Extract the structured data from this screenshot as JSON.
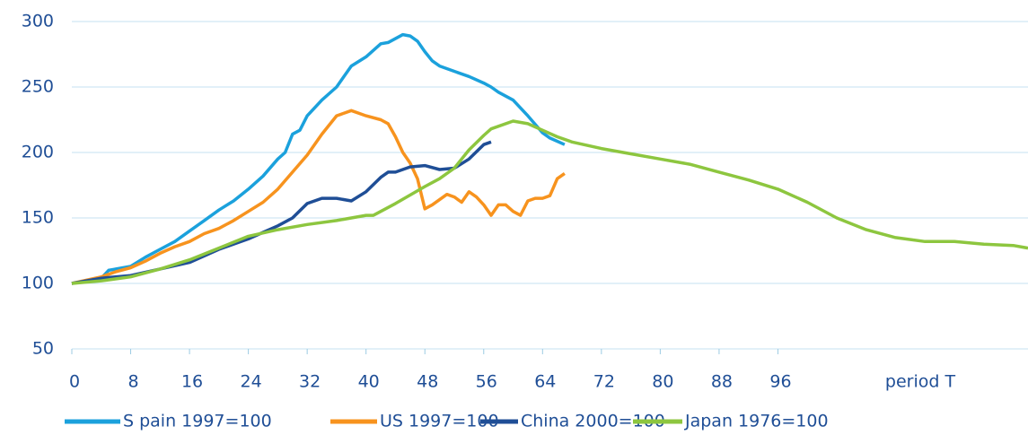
{
  "chart_data": {
    "type": "line",
    "xlabel": "period T",
    "xlim": [
      0,
      130
    ],
    "xticks": [
      0,
      8,
      16,
      24,
      32,
      40,
      48,
      56,
      64,
      72,
      80,
      88,
      96
    ],
    "ylim": [
      50,
      300
    ],
    "yticks": [
      50,
      100,
      150,
      200,
      250,
      300
    ],
    "grid": true,
    "legend": "bottom",
    "series": [
      {
        "name": "S pain 1997=100",
        "color": "#1ba1dc",
        "x": [
          0,
          4,
          5,
          8,
          10,
          12,
          14,
          16,
          18,
          20,
          22,
          24,
          26,
          28,
          29,
          30,
          31,
          32,
          34,
          36,
          37,
          38,
          40,
          42,
          43,
          45,
          46,
          47,
          48,
          49,
          50,
          52,
          54,
          56,
          57,
          58,
          60,
          62,
          64,
          65,
          67
        ],
        "values": [
          100,
          104,
          110,
          113,
          120,
          126,
          132,
          140,
          148,
          156,
          163,
          172,
          182,
          195,
          200,
          214,
          217,
          228,
          240,
          250,
          258,
          266,
          273,
          283,
          284,
          290,
          289,
          285,
          277,
          270,
          266,
          262,
          258,
          253,
          250,
          246,
          240,
          228,
          215,
          211,
          206
        ]
      },
      {
        "name": "US 1997=100",
        "color": "#f7931e",
        "x": [
          0,
          4,
          6,
          8,
          10,
          12,
          14,
          16,
          18,
          20,
          22,
          24,
          26,
          28,
          30,
          32,
          34,
          36,
          38,
          40,
          42,
          43,
          44,
          45,
          46,
          47,
          48,
          49,
          50,
          51,
          52,
          53,
          54,
          55,
          56,
          57,
          58,
          59,
          60,
          61,
          62,
          63,
          64,
          65,
          66,
          67
        ],
        "values": [
          100,
          105,
          109,
          112,
          117,
          123,
          128,
          132,
          138,
          142,
          148,
          155,
          162,
          172,
          185,
          198,
          214,
          228,
          232,
          228,
          225,
          222,
          212,
          200,
          192,
          180,
          157,
          160,
          164,
          168,
          166,
          162,
          170,
          166,
          160,
          152,
          160,
          160,
          155,
          152,
          163,
          165,
          165,
          167,
          180,
          184
        ]
      },
      {
        "name": "China 2000=100",
        "color": "#1f4e96",
        "x": [
          0,
          4,
          8,
          12,
          16,
          20,
          24,
          28,
          30,
          32,
          34,
          36,
          38,
          40,
          42,
          43,
          44,
          46,
          48,
          50,
          52,
          54,
          56,
          57
        ],
        "values": [
          100,
          104,
          106,
          111,
          116,
          126,
          134,
          144,
          150,
          161,
          165,
          165,
          163,
          170,
          181,
          185,
          185,
          189,
          190,
          187,
          188,
          195,
          206,
          208
        ]
      },
      {
        "name": "Japan 1976=100",
        "color": "#8dc63f",
        "x": [
          0,
          4,
          8,
          12,
          16,
          20,
          24,
          28,
          32,
          36,
          40,
          41,
          44,
          48,
          50,
          52,
          54,
          56,
          57,
          60,
          62,
          64,
          66,
          68,
          72,
          76,
          80,
          84,
          88,
          92,
          96,
          100,
          104,
          108,
          112,
          116,
          120,
          124,
          128,
          130
        ],
        "values": [
          100,
          102,
          105,
          111,
          118,
          127,
          136,
          141,
          145,
          148,
          152,
          152,
          161,
          174,
          180,
          188,
          202,
          213,
          218,
          224,
          222,
          217,
          212,
          208,
          203,
          199,
          195,
          191,
          185,
          179,
          172,
          162,
          150,
          141,
          135,
          132,
          132,
          130,
          129,
          127
        ]
      }
    ]
  }
}
